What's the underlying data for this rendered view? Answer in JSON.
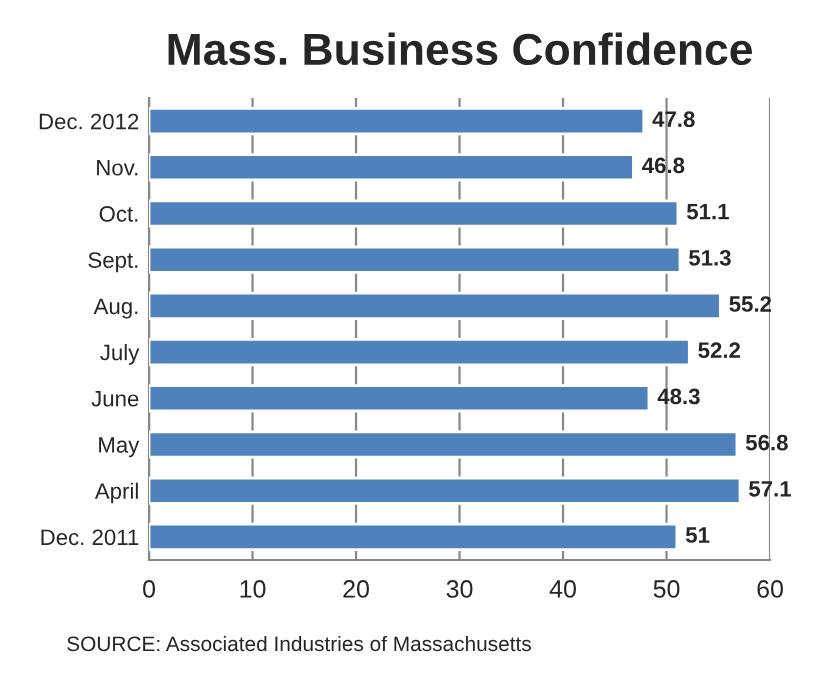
{
  "chart_data": {
    "type": "bar",
    "orientation": "horizontal",
    "title": "Mass. Business Confidence",
    "categories": [
      "Dec. 2012",
      "Nov.",
      "Oct.",
      "Sept.",
      "Aug.",
      "July",
      "June",
      "May",
      "April",
      "Dec. 2011"
    ],
    "values": [
      47.8,
      46.8,
      51.1,
      51.3,
      55.2,
      52.2,
      48.3,
      56.8,
      57.1,
      51
    ],
    "color": "#4f81bd",
    "xlim": [
      0,
      60
    ],
    "xticks": [
      0,
      10,
      20,
      30,
      40,
      50,
      60
    ],
    "grid": "x",
    "data_labels": true,
    "annotations": [
      "SOURCE: Associated Industries of Massachusetts"
    ]
  }
}
